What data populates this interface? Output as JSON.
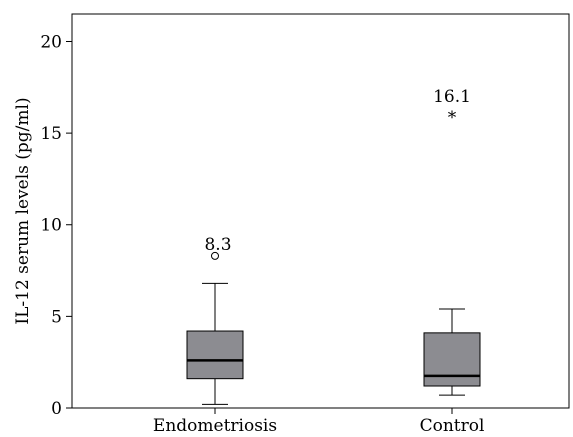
{
  "chart_data": {
    "type": "box",
    "ylabel": "IL-12 serum levels (pg/ml)",
    "ylim": [
      0,
      21.5
    ],
    "yticks": [
      0,
      5,
      10,
      15,
      20
    ],
    "grid": false,
    "categories": [
      "Endometriosis",
      "Control"
    ],
    "boxes": [
      {
        "category": "Endometriosis",
        "whisker_low": 0.2,
        "q1": 1.6,
        "median": 2.6,
        "q3": 4.2,
        "whisker_high": 6.8,
        "outliers": [
          {
            "value": 8.3,
            "marker": "circle",
            "label": "8.3"
          }
        ]
      },
      {
        "category": "Control",
        "whisker_low": 0.7,
        "q1": 1.2,
        "median": 1.75,
        "q3": 4.1,
        "whisker_high": 5.4,
        "outliers": [
          {
            "value": 16.1,
            "marker": "asterisk",
            "label": "16.1"
          }
        ]
      }
    ],
    "colors": {
      "box_fill": "#8c8c91",
      "stroke": "#000000"
    }
  }
}
